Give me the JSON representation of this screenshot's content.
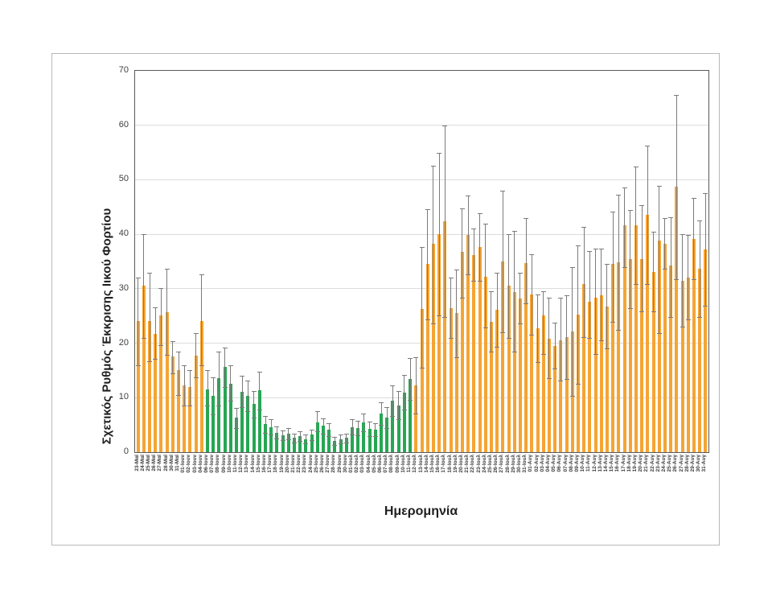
{
  "figure": {
    "type_note": "column chart with error bars, framed chart object on white canvas",
    "y_axis_title": "Σχετικός Ρυθμός Έκκρισης Ιικού Φορτίου",
    "x_axis_title": "Ημερομηνία"
  },
  "chart_data": {
    "type": "bar",
    "title": "",
    "xlabel": "Ημερομηνία",
    "ylabel": "Σχετικός Ρυθμός Έκκρισης Ιικού Φορτίου",
    "ylim": [
      0,
      70
    ],
    "yticks": [
      0,
      10,
      20,
      30,
      40,
      50,
      60,
      70
    ],
    "grid": true,
    "legend": "none",
    "error_bars": true,
    "palette": {
      "o": "#F5A433",
      "g": "#26A653",
      "error": "#7b7b7b"
    },
    "group_meaning": {
      "o": "orange bars (23-Μαϊ..04-Ιουν and 12-Ιουλ..31-Αυγ)",
      "g": "green bars (06-Ιουν..11-Ιουλ)"
    },
    "bars": [
      [
        "23-Μαϊ",
        24.0,
        16.0,
        32.0,
        "o"
      ],
      [
        "24-Μαϊ",
        30.5,
        20.9,
        40.0,
        "o"
      ],
      [
        "25-Μαϊ",
        24.0,
        16.7,
        33.0,
        "o"
      ],
      [
        "26-Μαϊ",
        21.7,
        17.2,
        26.6,
        "o"
      ],
      [
        "27-Μαϊ",
        25.1,
        19.7,
        30.2,
        "o"
      ],
      [
        "28-Μαϊ",
        25.7,
        17.9,
        33.6,
        "o"
      ],
      [
        "30-Μαϊ",
        17.6,
        14.5,
        20.4,
        "o"
      ],
      [
        "31-Μαϊ",
        15.0,
        10.5,
        18.4,
        "o"
      ],
      [
        "01-Ιουν",
        12.2,
        8.5,
        16.0,
        "o"
      ],
      [
        "02-Ιουν",
        12.0,
        8.5,
        15.0,
        "o"
      ],
      [
        "03-Ιουν",
        17.7,
        13.7,
        21.9,
        "o"
      ],
      [
        "04-Ιουν",
        24.1,
        16.0,
        32.7,
        "o"
      ],
      [
        "06-Ιουν",
        11.5,
        8.5,
        15.0,
        "g"
      ],
      [
        "07-Ιουν",
        10.4,
        7.0,
        13.7,
        "g"
      ],
      [
        "08-Ιουν",
        13.6,
        8.5,
        18.5,
        "g"
      ],
      [
        "09-Ιουν",
        15.6,
        12.0,
        19.2,
        "g"
      ],
      [
        "10-Ιουν",
        12.5,
        9.5,
        16.0,
        "g"
      ],
      [
        "11-Ιουν",
        6.3,
        4.5,
        8.1,
        "g"
      ],
      [
        "12-Ιουν",
        11.1,
        8.2,
        14.0,
        "g"
      ],
      [
        "13-Ιουν",
        10.4,
        7.6,
        13.2,
        "g"
      ],
      [
        "14-Ιουν",
        8.8,
        6.4,
        11.2,
        "g"
      ],
      [
        "15-Ιουν",
        11.3,
        7.8,
        14.8,
        "g"
      ],
      [
        "16-Ιουν",
        5.1,
        3.5,
        6.7,
        "g"
      ],
      [
        "17-Ιουν",
        4.6,
        3.2,
        6.0,
        "g"
      ],
      [
        "18-Ιουν",
        3.6,
        2.5,
        4.7,
        "g"
      ],
      [
        "19-Ιουν",
        3.1,
        2.2,
        4.0,
        "g"
      ],
      [
        "20-Ιουν",
        3.4,
        2.4,
        4.4,
        "g"
      ],
      [
        "21-Ιουν",
        2.6,
        1.8,
        3.4,
        "g"
      ],
      [
        "22-Ιουν",
        2.9,
        2.0,
        3.8,
        "g"
      ],
      [
        "23-Ιουν",
        2.4,
        1.6,
        3.2,
        "g"
      ],
      [
        "24-Ιουν",
        3.2,
        2.2,
        4.2,
        "g"
      ],
      [
        "25-Ιουν",
        5.4,
        3.8,
        7.6,
        "g"
      ],
      [
        "26-Ιουν",
        4.8,
        3.4,
        6.2,
        "g"
      ],
      [
        "27-Ιουν",
        4.1,
        2.9,
        5.3,
        "g"
      ],
      [
        "28-Ιουν",
        2.1,
        1.4,
        2.8,
        "g"
      ],
      [
        "29-Ιουν",
        2.4,
        1.6,
        3.2,
        "g"
      ],
      [
        "30-Ιουν",
        2.6,
        1.8,
        3.4,
        "g"
      ],
      [
        "01-Ιουλ",
        4.6,
        3.2,
        6.0,
        "g"
      ],
      [
        "02-Ιουλ",
        4.4,
        3.1,
        5.7,
        "g"
      ],
      [
        "03-Ιουλ",
        5.5,
        3.9,
        7.1,
        "g"
      ],
      [
        "04-Ιουλ",
        4.3,
        3.0,
        5.6,
        "g"
      ],
      [
        "05-Ιουλ",
        4.1,
        2.9,
        5.3,
        "g"
      ],
      [
        "06-Ιουλ",
        7.1,
        5.0,
        9.2,
        "g"
      ],
      [
        "07-Ιουλ",
        6.3,
        4.4,
        8.2,
        "g"
      ],
      [
        "08-Ιουλ",
        9.5,
        6.7,
        12.3,
        "g"
      ],
      [
        "09-Ιουλ",
        8.6,
        6.0,
        11.2,
        "g"
      ],
      [
        "10-Ιουλ",
        11.0,
        7.8,
        14.2,
        "g"
      ],
      [
        "11-Ιουλ",
        13.5,
        9.6,
        17.3,
        "g"
      ],
      [
        "12-Ιουλ",
        12.2,
        7.1,
        17.4,
        "o"
      ],
      [
        "13-Ιουλ",
        26.3,
        15.5,
        37.7,
        "o"
      ],
      [
        "14-Ιουλ",
        34.5,
        24.3,
        44.6,
        "o"
      ],
      [
        "15-Ιουλ",
        38.2,
        23.6,
        52.6,
        "o"
      ],
      [
        "16-Ιουλ",
        40.0,
        25.1,
        55.0,
        "o"
      ],
      [
        "17-Ιουλ",
        42.4,
        24.8,
        60.0,
        "o"
      ],
      [
        "18-Ιουλ",
        26.4,
        20.9,
        32.0,
        "o"
      ],
      [
        "19-Ιουλ",
        25.6,
        17.4,
        33.5,
        "o"
      ],
      [
        "20-Ιουλ",
        36.7,
        28.4,
        44.8,
        "o"
      ],
      [
        "21-Ιουλ",
        39.9,
        32.6,
        47.1,
        "o"
      ],
      [
        "22-Ιουλ",
        36.2,
        31.5,
        41.1,
        "o"
      ],
      [
        "23-Ιουλ",
        37.7,
        31.5,
        43.9,
        "o"
      ],
      [
        "24-Ιουλ",
        32.2,
        22.9,
        41.9,
        "o"
      ],
      [
        "25-Ιουλ",
        23.9,
        18.4,
        29.5,
        "o"
      ],
      [
        "26-Ιουλ",
        26.1,
        19.4,
        33.0,
        "o"
      ],
      [
        "27-Ιουλ",
        35.0,
        22.0,
        48.0,
        "o"
      ],
      [
        "28-Ιουλ",
        30.5,
        21.0,
        40.0,
        "o"
      ],
      [
        "29-Ιουλ",
        29.4,
        18.4,
        40.6,
        "o"
      ],
      [
        "30-Ιουλ",
        28.2,
        23.6,
        33.0,
        "o"
      ],
      [
        "31-Ιουλ",
        34.7,
        27.3,
        43.0,
        "o"
      ],
      [
        "01-Αυγ",
        28.9,
        21.6,
        36.3,
        "o"
      ],
      [
        "02-Αυγ",
        22.8,
        16.5,
        29.0,
        "o"
      ],
      [
        "03-Αυγ",
        25.1,
        18.0,
        29.5,
        "o"
      ],
      [
        "04-Αυγ",
        20.8,
        13.6,
        28.4,
        "o"
      ],
      [
        "05-Αυγ",
        19.5,
        15.4,
        23.8,
        "o"
      ],
      [
        "06-Αυγ",
        20.5,
        13.1,
        28.3,
        "o"
      ],
      [
        "07-Αυγ",
        21.1,
        13.4,
        28.8,
        "o"
      ],
      [
        "08-Αυγ",
        22.1,
        10.3,
        34.0,
        "o"
      ],
      [
        "09-Αυγ",
        25.3,
        12.5,
        37.9,
        "o"
      ],
      [
        "10-Αυγ",
        30.8,
        21.1,
        41.4,
        "o"
      ],
      [
        "11-Αυγ",
        27.6,
        20.9,
        36.9,
        "o"
      ],
      [
        "12-Αυγ",
        28.3,
        18.0,
        37.3,
        "o"
      ],
      [
        "13-Αυγ",
        28.8,
        20.5,
        37.4,
        "o"
      ],
      [
        "14-Αυγ",
        26.7,
        19.0,
        34.5,
        "o"
      ],
      [
        "15-Αυγ",
        34.6,
        23.9,
        44.1,
        "o"
      ],
      [
        "16-Αυγ",
        34.8,
        22.5,
        47.2,
        "o"
      ],
      [
        "17-Αυγ",
        41.6,
        34.0,
        48.6,
        "o"
      ],
      [
        "18-Αυγ",
        35.5,
        26.5,
        44.5,
        "o"
      ],
      [
        "19-Αυγ",
        41.6,
        30.8,
        52.4,
        "o"
      ],
      [
        "20-Αυγ",
        35.5,
        25.9,
        45.3,
        "o"
      ],
      [
        "21-Αυγ",
        43.6,
        30.8,
        56.2,
        "o"
      ],
      [
        "22-Αυγ",
        33.1,
        25.9,
        40.4,
        "o"
      ],
      [
        "23-Αυγ",
        38.8,
        21.8,
        48.9,
        "o"
      ],
      [
        "24-Αυγ",
        38.3,
        33.7,
        43.0,
        "o"
      ],
      [
        "25-Αυγ",
        34.2,
        24.8,
        43.1,
        "o"
      ],
      [
        "26-Αυγ",
        48.8,
        31.8,
        65.6,
        "o"
      ],
      [
        "27-Αυγ",
        31.5,
        23.0,
        40.0,
        "o"
      ],
      [
        "28-Αυγ",
        32.0,
        24.3,
        39.8,
        "o"
      ],
      [
        "29-Αυγ",
        39.2,
        31.8,
        46.6,
        "o"
      ],
      [
        "30-Αυγ",
        33.7,
        24.8,
        42.6,
        "o"
      ],
      [
        "31-Αυγ",
        37.2,
        26.9,
        47.6,
        "o"
      ]
    ]
  }
}
